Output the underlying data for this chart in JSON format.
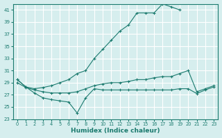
{
  "xlabel": "Humidex (Indice chaleur)",
  "bg_color": "#d6eeee",
  "grid_color": "#ffffff",
  "line_color": "#1a7a6e",
  "xlim": [
    -0.5,
    23.5
  ],
  "ylim": [
    23,
    42
  ],
  "xticks": [
    0,
    1,
    2,
    3,
    4,
    5,
    6,
    7,
    8,
    9,
    10,
    11,
    12,
    13,
    14,
    15,
    16,
    17,
    18,
    19,
    20,
    21,
    22,
    23
  ],
  "yticks": [
    23,
    25,
    27,
    29,
    31,
    33,
    35,
    37,
    39,
    41
  ],
  "series": [
    {
      "x": [
        0,
        1,
        2,
        3,
        4,
        5,
        6,
        7,
        8,
        9,
        10,
        11,
        12,
        13,
        14,
        15,
        16,
        17,
        18,
        19,
        20,
        21,
        22,
        23
      ],
      "y": [
        29.5,
        28.3,
        28.0,
        28.2,
        28.5,
        29.0,
        29.5,
        30.5,
        31.0,
        33.0,
        34.5,
        36.0,
        37.5,
        38.5,
        40.5,
        40.5,
        40.5,
        42.0,
        41.5,
        41.0,
        null,
        null,
        null,
        null
      ]
    },
    {
      "x": [
        0,
        1,
        2,
        3,
        4,
        5,
        6,
        7,
        8,
        9,
        10,
        11,
        12,
        13,
        14,
        15,
        16,
        17,
        18,
        19,
        20,
        21,
        22,
        23
      ],
      "y": [
        29.0,
        28.2,
        27.8,
        27.5,
        27.3,
        27.3,
        27.3,
        27.5,
        28.0,
        28.5,
        28.8,
        29.0,
        29.0,
        29.2,
        29.5,
        29.5,
        29.8,
        30.0,
        30.0,
        30.5,
        31.0,
        27.5,
        28.0,
        28.5
      ]
    },
    {
      "x": [
        0,
        1,
        2,
        3,
        4,
        5,
        6,
        7,
        8,
        9,
        10,
        11,
        12,
        13,
        14,
        15,
        16,
        17,
        18,
        19,
        20,
        21,
        22,
        23
      ],
      "y": [
        29.5,
        28.3,
        27.3,
        26.5,
        26.2,
        26.0,
        25.8,
        24.0,
        26.5,
        28.0,
        27.8,
        27.8,
        27.8,
        27.8,
        27.8,
        27.8,
        27.8,
        27.8,
        27.8,
        28.0,
        28.0,
        27.2,
        27.8,
        28.3
      ]
    }
  ]
}
